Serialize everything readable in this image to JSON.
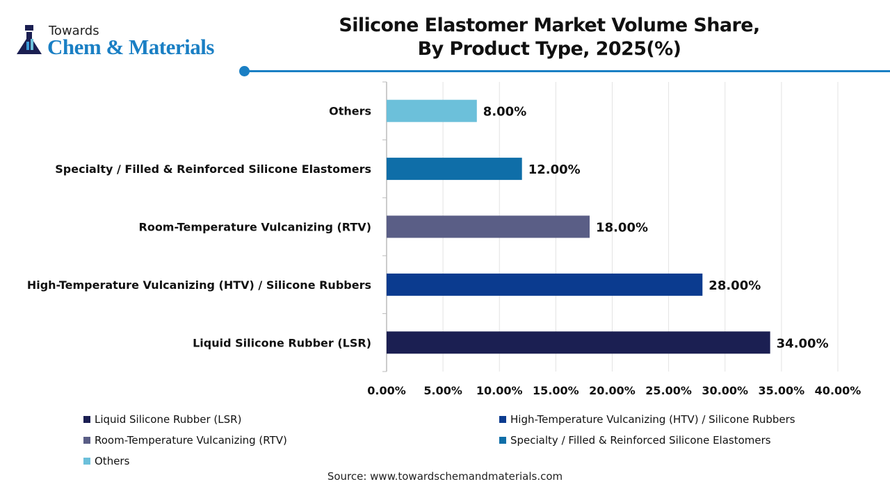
{
  "logo": {
    "line1": "Towards",
    "line2": "Chem & Materials"
  },
  "chart_data": {
    "type": "bar",
    "orientation": "horizontal",
    "title": "Silicone Elastomer Market Volume Share,\nBy Product Type, 2025(%)",
    "title_lines": [
      "Silicone Elastomer Market Volume Share,",
      "By Product Type, 2025(%)"
    ],
    "categories": [
      "Liquid Silicone Rubber (LSR)",
      "High-Temperature Vulcanizing (HTV) / Silicone Rubbers",
      "Room-Temperature Vulcanizing (RTV)",
      "Specialty / Filled & Reinforced Silicone Elastomers",
      "Others"
    ],
    "values": [
      34,
      28,
      18,
      12,
      8
    ],
    "data_labels": [
      "34.00%",
      "28.00%",
      "18.00%",
      "12.00%",
      "8.00%"
    ],
    "colors": [
      "#1b1f52",
      "#0b3b8f",
      "#5a5e86",
      "#0f6ea8",
      "#6cc0da"
    ],
    "xlim": [
      0,
      40
    ],
    "x_ticks": [
      "0.00%",
      "5.00%",
      "10.00%",
      "15.00%",
      "20.00%",
      "25.00%",
      "30.00%",
      "35.00%",
      "40.00%"
    ],
    "grid": "vertical",
    "legend_position": "bottom"
  },
  "source": "Source: www.towardschemandmaterials.com"
}
